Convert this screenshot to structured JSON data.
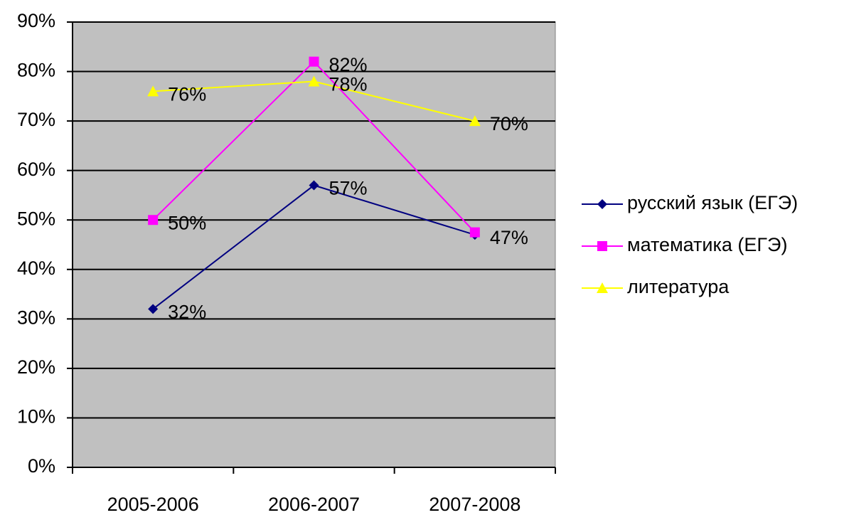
{
  "chart_data": {
    "type": "line",
    "categories": [
      "2005-2006",
      "2006-2007",
      "2007-2008"
    ],
    "series": [
      {
        "name": "русский язык (ЕГЭ)",
        "color": "#000080",
        "marker": "diamond",
        "values": [
          32,
          57,
          47
        ],
        "value_labels": [
          "32%",
          "57%",
          "47%"
        ]
      },
      {
        "name": "математика (ЕГЭ)",
        "color": "#ff00ff",
        "marker": "square",
        "values": [
          50,
          82,
          47.5
        ],
        "value_labels": [
          "50%",
          "82%",
          null
        ]
      },
      {
        "name": "литература",
        "color": "#ffff00",
        "marker": "triangle",
        "values": [
          76,
          78,
          70
        ],
        "value_labels": [
          "76%",
          "78%",
          "70%"
        ]
      }
    ],
    "ylim": [
      0,
      90
    ],
    "yticks": [
      {
        "value": 0,
        "label": "0%"
      },
      {
        "value": 10,
        "label": "10%"
      },
      {
        "value": 20,
        "label": "20%"
      },
      {
        "value": 30,
        "label": "30%"
      },
      {
        "value": 40,
        "label": "40%"
      },
      {
        "value": 50,
        "label": "50%"
      },
      {
        "value": 60,
        "label": "60%"
      },
      {
        "value": 70,
        "label": "70%"
      },
      {
        "value": 80,
        "label": "80%"
      },
      {
        "value": 90,
        "label": "90%"
      }
    ],
    "grid": true,
    "legend": "right",
    "plot_background": "#c0c0c0"
  }
}
